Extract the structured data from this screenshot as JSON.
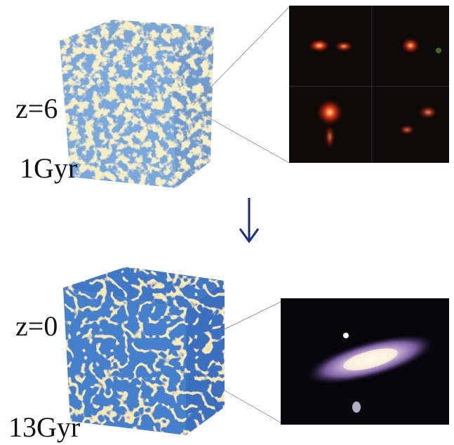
{
  "panels": [
    {
      "redshift": "z=6",
      "age": "1Gyr"
    },
    {
      "redshift": "z=0",
      "age": "13Gyr"
    }
  ]
}
